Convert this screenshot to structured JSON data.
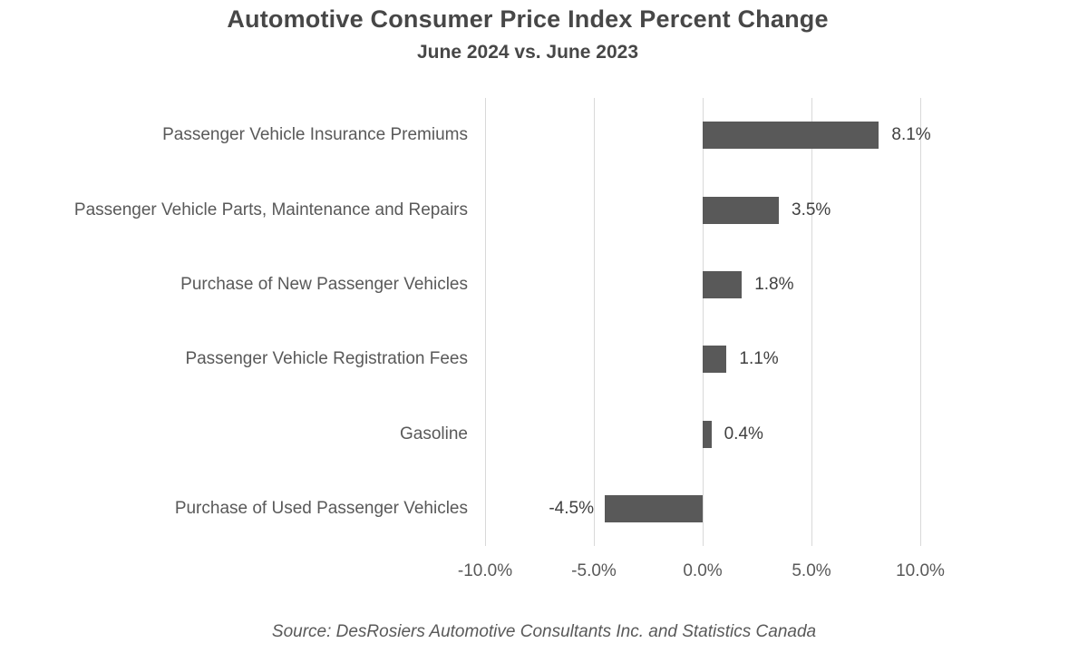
{
  "chart_data": {
    "type": "bar",
    "orientation": "horizontal",
    "title": "Automotive Consumer Price Index Percent Change",
    "subtitle": "June 2024 vs. June 2023",
    "categories": [
      "Passenger Vehicle Insurance Premiums",
      "Passenger Vehicle Parts, Maintenance and Repairs",
      "Purchase of New Passenger Vehicles",
      "Passenger Vehicle Registration Fees",
      "Gasoline",
      "Purchase of Used Passenger Vehicles"
    ],
    "values": [
      8.1,
      3.5,
      1.8,
      1.1,
      0.4,
      -4.5
    ],
    "value_labels": [
      "8.1%",
      "3.5%",
      "1.8%",
      "1.1%",
      "0.4%",
      "-4.5%"
    ],
    "x_ticks": [
      {
        "value": -10,
        "label": "-10.0%"
      },
      {
        "value": -5,
        "label": "-5.0%"
      },
      {
        "value": 0,
        "label": "0.0%"
      },
      {
        "value": 5,
        "label": "5.0%"
      },
      {
        "value": 10,
        "label": "10.0%"
      }
    ],
    "xlim": [
      -10,
      10
    ],
    "grid": "vertical",
    "legend": "none",
    "source": "Source: DesRosiers Automotive Consultants Inc. and Statistics Canada",
    "colors": {
      "bar": "#595959",
      "gridline": "#d9d9d9",
      "title_text": "#474747",
      "axis_text": "#595959",
      "value_text": "#404040"
    }
  }
}
